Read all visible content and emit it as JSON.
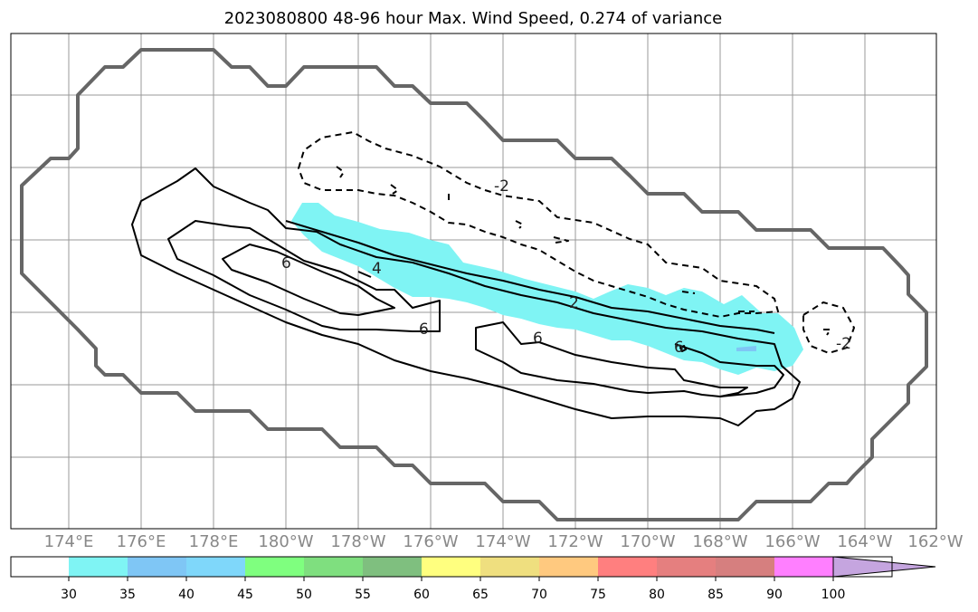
{
  "title": "2023080800 48-96 hour Max. Wind Speed, 0.274 of variance",
  "longitude_labels": [
    "174°E",
    "176°E",
    "178°E",
    "180°W",
    "178°W",
    "176°W",
    "174°W",
    "172°W",
    "170°W",
    "168°W",
    "166°W",
    "164°W",
    "162°W"
  ],
  "colorbar": {
    "ticks": [
      "30",
      "35",
      "40",
      "45",
      "50",
      "55",
      "60",
      "65",
      "70",
      "75",
      "80",
      "85",
      "90",
      "100"
    ],
    "colors": [
      "#ffffff",
      "#7ff4f4",
      "#7fc6f5",
      "#7fd7fa",
      "#7fff7f",
      "#7fdf7f",
      "#7fbf7f",
      "#ffff7f",
      "#efdf7f",
      "#ffc97f",
      "#ff7f7f",
      "#e57f7f",
      "#d67f7f",
      "#ff7fff",
      "#c5a5df"
    ],
    "extend": "max"
  },
  "contour_labels": {
    "pos_6a": "6",
    "pos_4": "4",
    "pos_6b": "6",
    "pos_2": "2",
    "pos_6c": "6",
    "pos_6d": "6",
    "neg_2a": "-2",
    "neg_2b": "-2"
  },
  "style": {
    "region_color": "#666666",
    "fill_color": "#7ff4f4",
    "grid_color": "#999999"
  }
}
